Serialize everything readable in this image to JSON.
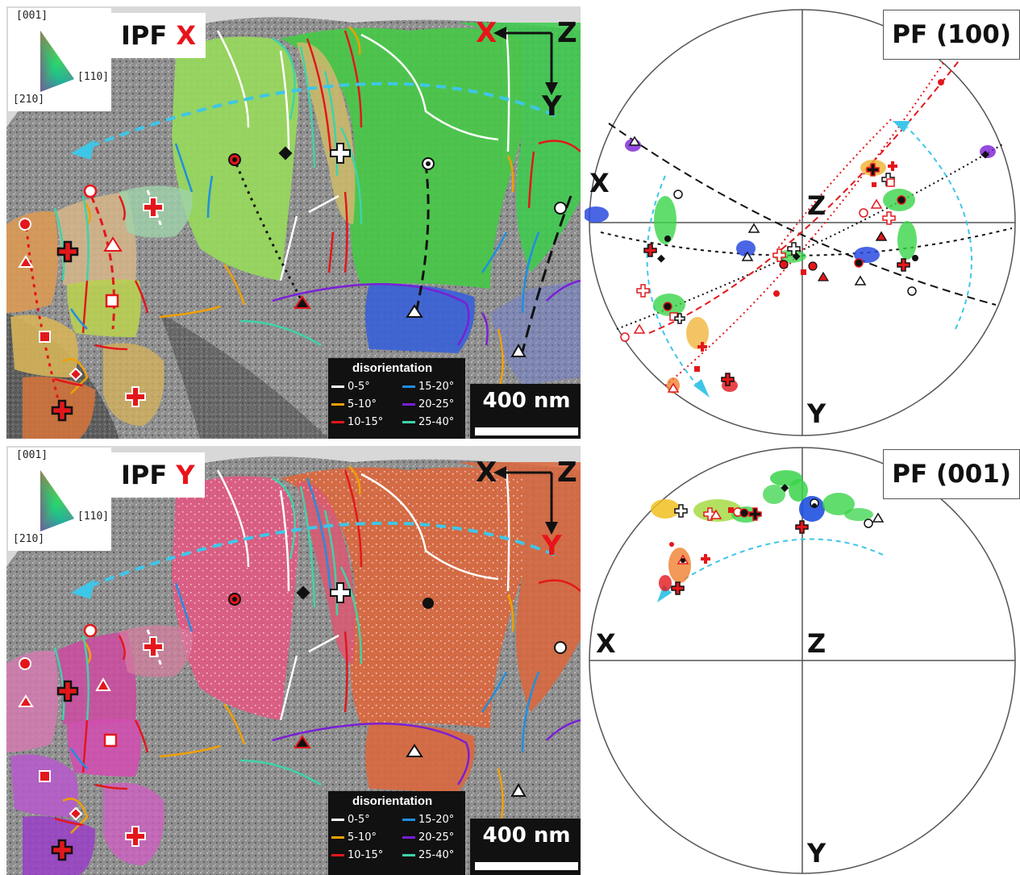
{
  "figure": {
    "ipf_key": {
      "pole_001": "[001]",
      "pole_110": "[110]",
      "pole_210": "[210]"
    },
    "ipf_x": {
      "title_prefix": "IPF ",
      "title_axis": "X",
      "axis_x": "X",
      "axis_z": "Z",
      "axis_y": "Y"
    },
    "ipf_y": {
      "title_prefix": "IPF ",
      "title_axis": "Y",
      "axis_x": "X",
      "axis_z": "Z",
      "axis_y": "Y"
    },
    "disorientation_legend": {
      "title": "disorientation",
      "items": [
        {
          "label": "0-5°",
          "color": "#ffffff"
        },
        {
          "label": "5-10°",
          "color": "#f0a000"
        },
        {
          "label": "10-15°",
          "color": "#e3171b"
        },
        {
          "label": "15-20°",
          "color": "#1f8fe0"
        },
        {
          "label": "20-25°",
          "color": "#7a1fd6"
        },
        {
          "label": "25-40°",
          "color": "#3fd3a8"
        }
      ]
    },
    "scale_bar": "400 nm",
    "pf_100": {
      "title": "PF (100)",
      "x": "X",
      "z": "Z",
      "y": "Y"
    },
    "pf_001": {
      "title": "PF (001)",
      "x": "X",
      "z": "Z",
      "y": "Y"
    },
    "colors": {
      "map_gray": "#8a8a8a",
      "highlight_red": "#e8141a",
      "arc_cyan": "#3ec6e8",
      "ipf_x_grains": [
        "#93d65a",
        "#4ccb4c",
        "#3a6ad8",
        "#d7b66a",
        "#d59a5a",
        "#7ec9a9"
      ],
      "ipf_y_grains": [
        "#e05a82",
        "#d9683e",
        "#c94aa6",
        "#b25cc9",
        "#e89ab0"
      ]
    }
  }
}
